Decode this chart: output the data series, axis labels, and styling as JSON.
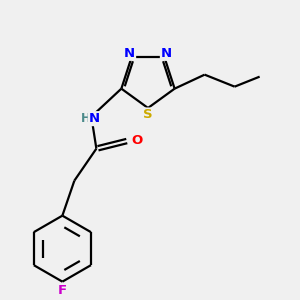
{
  "bg_color": "#f0f0f0",
  "atom_colors": {
    "N": "#0000FF",
    "O": "#FF0000",
    "F": "#CC00CC",
    "S": "#CCAA00",
    "C": "#000000",
    "H": "#4A8A8A"
  },
  "bond_color": "#000000",
  "font_size": 9.5,
  "lw": 1.6
}
